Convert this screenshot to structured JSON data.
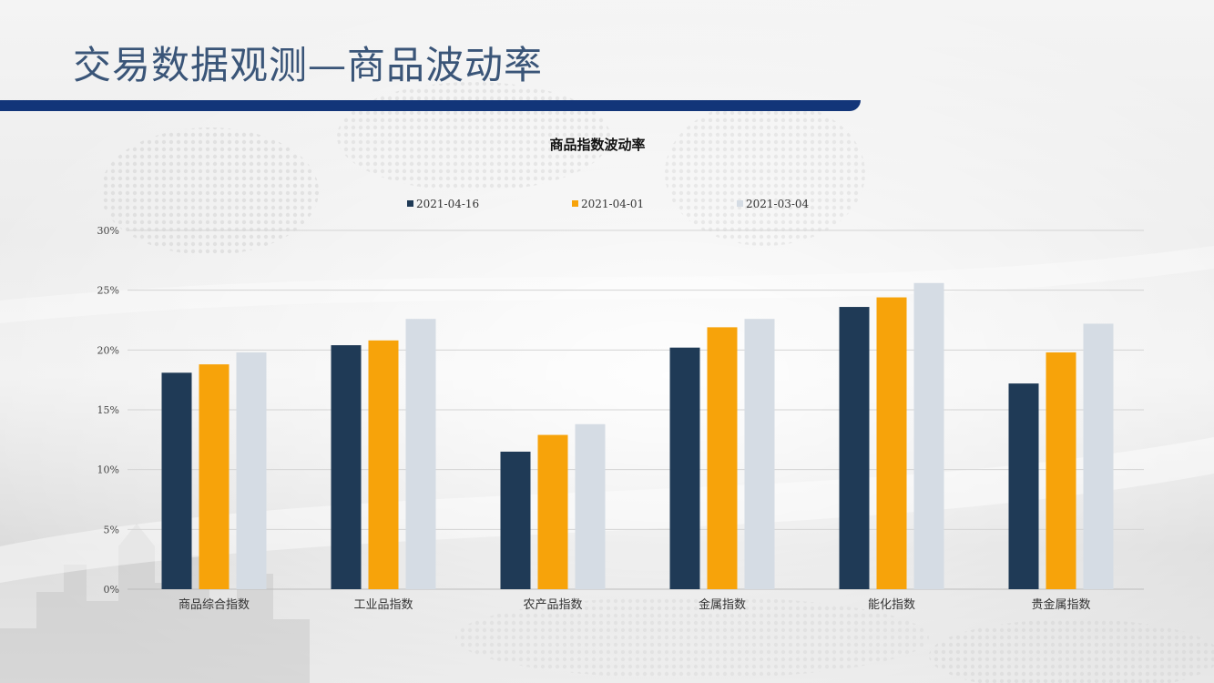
{
  "slide": {
    "title": "交易数据观测—商品波动率"
  },
  "colors": {
    "title_text": "#3a5578",
    "title_bar": "#123579"
  },
  "chart_data": {
    "type": "bar",
    "title": "商品指数波动率",
    "xlabel": "",
    "ylabel": "",
    "ylim": [
      0,
      30
    ],
    "y_ticks": [
      0,
      5,
      10,
      15,
      20,
      25,
      30
    ],
    "y_tick_labels": [
      "0%",
      "5%",
      "10%",
      "15%",
      "20%",
      "25%",
      "30%"
    ],
    "grid": true,
    "legend_position": "top",
    "categories": [
      "商品综合指数",
      "工业品指数",
      "农产品指数",
      "金属指数",
      "能化指数",
      "贵金属指数"
    ],
    "series": [
      {
        "name": "2021-04-16",
        "color": "#1f3a56",
        "values": [
          18.1,
          20.4,
          11.5,
          20.2,
          23.6,
          17.2
        ]
      },
      {
        "name": "2021-04-01",
        "color": "#f7a30a",
        "values": [
          18.8,
          20.8,
          12.9,
          21.9,
          24.4,
          19.8
        ]
      },
      {
        "name": "2021-03-04",
        "color": "#d5dce4",
        "values": [
          19.8,
          22.6,
          13.8,
          22.6,
          25.6,
          22.2
        ]
      }
    ]
  }
}
